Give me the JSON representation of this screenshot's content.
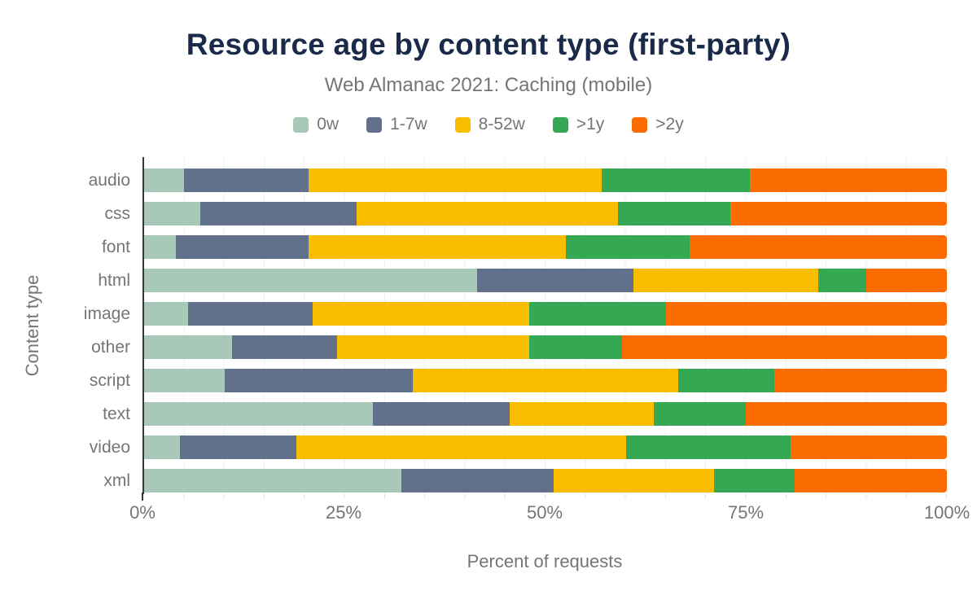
{
  "header": {
    "title": "Resource age by content type (first-party)",
    "subtitle": "Web Almanac 2021: Caching (mobile)"
  },
  "colors": {
    "title_navy": "#1a2b49",
    "label_gray": "#757575",
    "axis_line": "#333940",
    "gridline": "#eef0f3"
  },
  "chart_data": {
    "type": "bar",
    "stacked": true,
    "orientation": "horizontal",
    "title": "Resource age by content type (first-party)",
    "subtitle": "Web Almanac 2021: Caching (mobile)",
    "xlabel": "Percent of requests",
    "ylabel": "Content type",
    "xlim": [
      0,
      100
    ],
    "x_ticks": [
      "0%",
      "25%",
      "50%",
      "75%",
      "100%"
    ],
    "x_tick_positions": [
      0,
      25,
      50,
      75,
      100
    ],
    "grid": "minor vertical lines every 5%",
    "legend_position": "top",
    "categories": [
      "audio",
      "css",
      "font",
      "html",
      "image",
      "other",
      "script",
      "text",
      "video",
      "xml"
    ],
    "series": [
      {
        "name": "0w",
        "color": "#a9c9b8",
        "values": [
          5,
          7,
          4,
          41.5,
          5.5,
          11,
          10,
          28.5,
          4.5,
          32
        ]
      },
      {
        "name": "1-7w",
        "color": "#61718c",
        "values": [
          15.5,
          19.5,
          16.5,
          19.5,
          15.5,
          13,
          23.5,
          17,
          14.5,
          19
        ]
      },
      {
        "name": "8-52w",
        "color": "#f9bd00",
        "values": [
          36.5,
          32.5,
          32,
          23,
          27,
          24,
          33,
          18,
          41,
          20
        ]
      },
      {
        "name": ">1y",
        "color": "#34a853",
        "values": [
          18.5,
          14,
          15.5,
          6,
          17,
          11.5,
          12,
          11.5,
          20.5,
          10
        ]
      },
      {
        "name": ">2y",
        "color": "#fb6d00",
        "values": [
          24.5,
          27,
          32,
          10,
          35,
          40.5,
          21.5,
          25,
          19.5,
          19
        ]
      }
    ]
  }
}
